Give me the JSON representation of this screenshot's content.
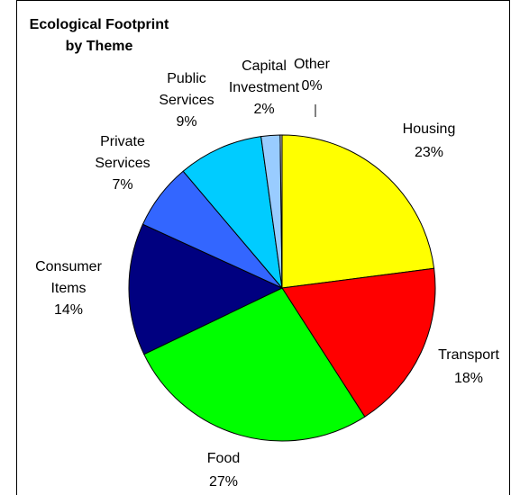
{
  "chart_data": {
    "type": "pie",
    "title_lines": [
      "Ecological Footprint",
      "by Theme"
    ],
    "slices": [
      {
        "label": "Housing",
        "label_lines": [
          "Housing"
        ],
        "value": 23,
        "value_label": "23%",
        "color": "#ffff00"
      },
      {
        "label": "Transport",
        "label_lines": [
          "Transport"
        ],
        "value": 18,
        "value_label": "18%",
        "color": "#ff0000"
      },
      {
        "label": "Food",
        "label_lines": [
          "Food"
        ],
        "value": 27,
        "value_label": "27%",
        "color": "#00ff00"
      },
      {
        "label": "Consumer Items",
        "label_lines": [
          "Consumer",
          "Items"
        ],
        "value": 14,
        "value_label": "14%",
        "color": "#000080"
      },
      {
        "label": "Private Services",
        "label_lines": [
          "Private",
          "Services"
        ],
        "value": 7,
        "value_label": "7%",
        "color": "#3366ff"
      },
      {
        "label": "Public Services",
        "label_lines": [
          "Public",
          "Services"
        ],
        "value": 9,
        "value_label": "9%",
        "color": "#00ccff"
      },
      {
        "label": "Capital Investment",
        "label_lines": [
          "Capital",
          "Investment"
        ],
        "value": 2,
        "value_label": "2%",
        "color": "#99ccff"
      },
      {
        "label": "Other",
        "label_lines": [
          "Other"
        ],
        "value": 0.2,
        "value_label": "0%",
        "color": "#cccccc"
      }
    ]
  }
}
